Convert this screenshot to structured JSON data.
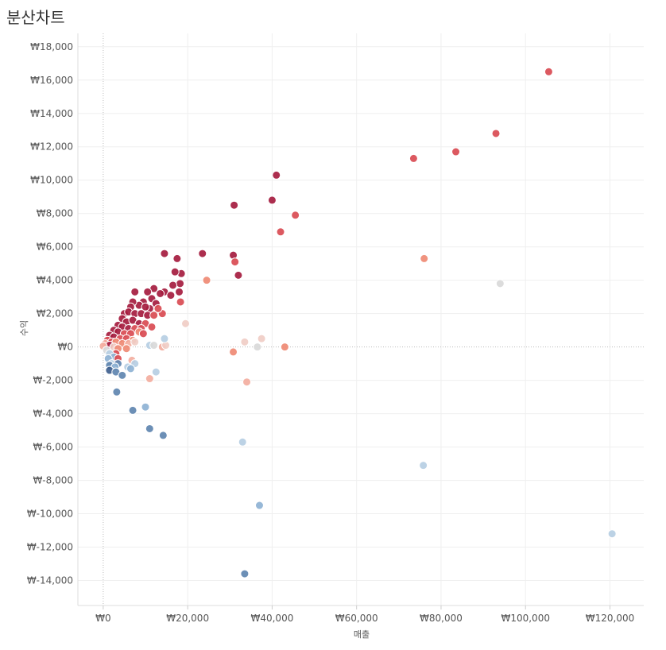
{
  "chart_data": {
    "type": "scatter",
    "title": "분산차트",
    "xlabel": "매출",
    "ylabel": "수익",
    "xlim": [
      -6000,
      128000
    ],
    "ylim": [
      -15500,
      18800
    ],
    "x_ticks": [
      0,
      20000,
      40000,
      60000,
      80000,
      100000,
      120000
    ],
    "x_tick_labels": [
      "₩0",
      "₩20,000",
      "₩40,000",
      "₩60,000",
      "₩80,000",
      "₩100,000",
      "₩120,000"
    ],
    "y_ticks": [
      18000,
      16000,
      14000,
      12000,
      10000,
      8000,
      6000,
      4000,
      2000,
      0,
      -2000,
      -4000,
      -6000,
      -8000,
      -10000,
      -12000,
      -14000
    ],
    "y_tick_labels": [
      "₩18,000",
      "₩16,000",
      "₩14,000",
      "₩12,000",
      "₩10,000",
      "₩8,000",
      "₩6,000",
      "₩4,000",
      "₩2,000",
      "₩0",
      "₩-2,000",
      "₩-4,000",
      "₩-6,000",
      "₩-8,000",
      "₩-10,000",
      "₩-12,000",
      "₩-14,000"
    ],
    "grid": true,
    "color_encoding": "diverging by 수익 비율 (red = high, blue = negative)",
    "colors": {
      "dark_red": "#a51c3f",
      "red": "#d94b52",
      "salmon": "#ef8a74",
      "light_salmon": "#f3aea0",
      "light_pink": "#f0cdc6",
      "light_gray": "#d9d9d9",
      "light_blue": "#b6cee3",
      "blue": "#8eb2d4",
      "dark_blue": "#5f85b0",
      "navy": "#3f5f8e"
    },
    "points": [
      {
        "x": 105500,
        "y": 16500,
        "c": "red"
      },
      {
        "x": 93000,
        "y": 12800,
        "c": "red"
      },
      {
        "x": 83500,
        "y": 11700,
        "c": "red"
      },
      {
        "x": 73500,
        "y": 11300,
        "c": "red"
      },
      {
        "x": 41000,
        "y": 10300,
        "c": "dark_red"
      },
      {
        "x": 40000,
        "y": 8800,
        "c": "dark_red"
      },
      {
        "x": 45500,
        "y": 7900,
        "c": "red"
      },
      {
        "x": 31000,
        "y": 8500,
        "c": "dark_red"
      },
      {
        "x": 42000,
        "y": 6900,
        "c": "red"
      },
      {
        "x": 76000,
        "y": 5300,
        "c": "salmon"
      },
      {
        "x": 94000,
        "y": 3800,
        "c": "light_gray"
      },
      {
        "x": 120500,
        "y": -11200,
        "c": "light_blue"
      },
      {
        "x": 75800,
        "y": -7100,
        "c": "light_blue"
      },
      {
        "x": 23500,
        "y": 5600,
        "c": "dark_red"
      },
      {
        "x": 30800,
        "y": 5500,
        "c": "dark_red"
      },
      {
        "x": 31200,
        "y": 5100,
        "c": "red"
      },
      {
        "x": 32000,
        "y": 4300,
        "c": "dark_red"
      },
      {
        "x": 14500,
        "y": 5600,
        "c": "dark_red"
      },
      {
        "x": 17500,
        "y": 5300,
        "c": "dark_red"
      },
      {
        "x": 18500,
        "y": 4400,
        "c": "dark_red"
      },
      {
        "x": 17000,
        "y": 4500,
        "c": "dark_red"
      },
      {
        "x": 24500,
        "y": 4000,
        "c": "salmon"
      },
      {
        "x": 18200,
        "y": 3800,
        "c": "dark_red"
      },
      {
        "x": 16500,
        "y": 3700,
        "c": "dark_red"
      },
      {
        "x": 18000,
        "y": 3300,
        "c": "dark_red"
      },
      {
        "x": 14500,
        "y": 3300,
        "c": "dark_red"
      },
      {
        "x": 16000,
        "y": 3100,
        "c": "dark_red"
      },
      {
        "x": 12000,
        "y": 3500,
        "c": "dark_red"
      },
      {
        "x": 13500,
        "y": 3200,
        "c": "dark_red"
      },
      {
        "x": 10500,
        "y": 3300,
        "c": "dark_red"
      },
      {
        "x": 7500,
        "y": 3300,
        "c": "dark_red"
      },
      {
        "x": 18300,
        "y": 2700,
        "c": "red"
      },
      {
        "x": 14000,
        "y": 2000,
        "c": "red"
      },
      {
        "x": 19500,
        "y": 1400,
        "c": "light_pink"
      },
      {
        "x": 11500,
        "y": 2900,
        "c": "dark_red"
      },
      {
        "x": 12500,
        "y": 2600,
        "c": "dark_red"
      },
      {
        "x": 11000,
        "y": 2300,
        "c": "dark_red"
      },
      {
        "x": 13000,
        "y": 2300,
        "c": "red"
      },
      {
        "x": 9500,
        "y": 2700,
        "c": "dark_red"
      },
      {
        "x": 8500,
        "y": 2500,
        "c": "dark_red"
      },
      {
        "x": 10000,
        "y": 2400,
        "c": "dark_red"
      },
      {
        "x": 7000,
        "y": 2700,
        "c": "dark_red"
      },
      {
        "x": 6500,
        "y": 2400,
        "c": "dark_red"
      },
      {
        "x": 5000,
        "y": 2000,
        "c": "dark_red"
      },
      {
        "x": 6000,
        "y": 2100,
        "c": "dark_red"
      },
      {
        "x": 7500,
        "y": 2000,
        "c": "dark_red"
      },
      {
        "x": 9000,
        "y": 2000,
        "c": "dark_red"
      },
      {
        "x": 10500,
        "y": 1900,
        "c": "dark_red"
      },
      {
        "x": 12000,
        "y": 1900,
        "c": "red"
      },
      {
        "x": 4500,
        "y": 1700,
        "c": "dark_red"
      },
      {
        "x": 5500,
        "y": 1500,
        "c": "dark_red"
      },
      {
        "x": 7000,
        "y": 1600,
        "c": "dark_red"
      },
      {
        "x": 8500,
        "y": 1400,
        "c": "dark_red"
      },
      {
        "x": 10000,
        "y": 1400,
        "c": "red"
      },
      {
        "x": 11500,
        "y": 1200,
        "c": "red"
      },
      {
        "x": 3500,
        "y": 1300,
        "c": "dark_red"
      },
      {
        "x": 4500,
        "y": 1200,
        "c": "dark_red"
      },
      {
        "x": 6000,
        "y": 1100,
        "c": "dark_red"
      },
      {
        "x": 7500,
        "y": 1100,
        "c": "red"
      },
      {
        "x": 9000,
        "y": 1100,
        "c": "red"
      },
      {
        "x": 2500,
        "y": 1000,
        "c": "dark_red"
      },
      {
        "x": 3500,
        "y": 900,
        "c": "dark_red"
      },
      {
        "x": 5000,
        "y": 800,
        "c": "red"
      },
      {
        "x": 6500,
        "y": 800,
        "c": "red"
      },
      {
        "x": 8500,
        "y": 900,
        "c": "salmon"
      },
      {
        "x": 9500,
        "y": 800,
        "c": "red"
      },
      {
        "x": 1500,
        "y": 700,
        "c": "dark_red"
      },
      {
        "x": 2500,
        "y": 600,
        "c": "dark_red"
      },
      {
        "x": 4000,
        "y": 500,
        "c": "red"
      },
      {
        "x": 5500,
        "y": 500,
        "c": "red"
      },
      {
        "x": 7000,
        "y": 400,
        "c": "salmon"
      },
      {
        "x": 1000,
        "y": 400,
        "c": "red"
      },
      {
        "x": 2000,
        "y": 300,
        "c": "red"
      },
      {
        "x": 3000,
        "y": 300,
        "c": "salmon"
      },
      {
        "x": 4500,
        "y": 200,
        "c": "salmon"
      },
      {
        "x": 6000,
        "y": 200,
        "c": "light_salmon"
      },
      {
        "x": 500,
        "y": 200,
        "c": "light_salmon"
      },
      {
        "x": 1500,
        "y": 100,
        "c": "dark_red"
      },
      {
        "x": 2500,
        "y": 0,
        "c": "light_pink"
      },
      {
        "x": 3500,
        "y": -100,
        "c": "salmon"
      },
      {
        "x": 5500,
        "y": -100,
        "c": "salmon"
      },
      {
        "x": 0,
        "y": 50,
        "c": "light_salmon"
      },
      {
        "x": 800,
        "y": -200,
        "c": "light_gray"
      },
      {
        "x": 3000,
        "y": -400,
        "c": "red"
      },
      {
        "x": 7500,
        "y": 300,
        "c": "light_pink"
      },
      {
        "x": 6800,
        "y": -800,
        "c": "light_salmon"
      },
      {
        "x": 11000,
        "y": 100,
        "c": "light_blue"
      },
      {
        "x": 12000,
        "y": 100,
        "c": "light_gray"
      },
      {
        "x": 14000,
        "y": 0,
        "c": "light_salmon"
      },
      {
        "x": 14800,
        "y": 100,
        "c": "light_pink"
      },
      {
        "x": 14500,
        "y": 500,
        "c": "light_blue"
      },
      {
        "x": 1500,
        "y": -400,
        "c": "light_blue"
      },
      {
        "x": 2500,
        "y": -600,
        "c": "blue"
      },
      {
        "x": 1200,
        "y": -700,
        "c": "blue"
      },
      {
        "x": 3500,
        "y": -700,
        "c": "red"
      },
      {
        "x": 2000,
        "y": -1000,
        "c": "light_blue"
      },
      {
        "x": 3500,
        "y": -1000,
        "c": "dark_blue"
      },
      {
        "x": 1500,
        "y": -1100,
        "c": "dark_blue"
      },
      {
        "x": 2800,
        "y": -1200,
        "c": "blue"
      },
      {
        "x": 5800,
        "y": -1200,
        "c": "light_blue"
      },
      {
        "x": 7500,
        "y": -1000,
        "c": "light_blue"
      },
      {
        "x": 6500,
        "y": -1300,
        "c": "blue"
      },
      {
        "x": 1500,
        "y": -1400,
        "c": "navy"
      },
      {
        "x": 3000,
        "y": -1500,
        "c": "dark_blue"
      },
      {
        "x": 4500,
        "y": -1700,
        "c": "dark_blue"
      },
      {
        "x": 12500,
        "y": -1500,
        "c": "light_blue"
      },
      {
        "x": 11000,
        "y": -1900,
        "c": "light_salmon"
      },
      {
        "x": 3200,
        "y": -2700,
        "c": "dark_blue"
      },
      {
        "x": 7000,
        "y": -3800,
        "c": "dark_blue"
      },
      {
        "x": 10000,
        "y": -3600,
        "c": "blue"
      },
      {
        "x": 11000,
        "y": -4900,
        "c": "dark_blue"
      },
      {
        "x": 14200,
        "y": -5300,
        "c": "dark_blue"
      },
      {
        "x": 30800,
        "y": -300,
        "c": "salmon"
      },
      {
        "x": 33500,
        "y": 300,
        "c": "light_pink"
      },
      {
        "x": 36500,
        "y": 0,
        "c": "light_gray"
      },
      {
        "x": 37500,
        "y": 500,
        "c": "light_pink"
      },
      {
        "x": 43000,
        "y": 0,
        "c": "salmon"
      },
      {
        "x": 34000,
        "y": -2100,
        "c": "light_salmon"
      },
      {
        "x": 33000,
        "y": -5700,
        "c": "light_blue"
      },
      {
        "x": 37000,
        "y": -9500,
        "c": "blue"
      },
      {
        "x": 33500,
        "y": -13600,
        "c": "dark_blue"
      }
    ]
  }
}
